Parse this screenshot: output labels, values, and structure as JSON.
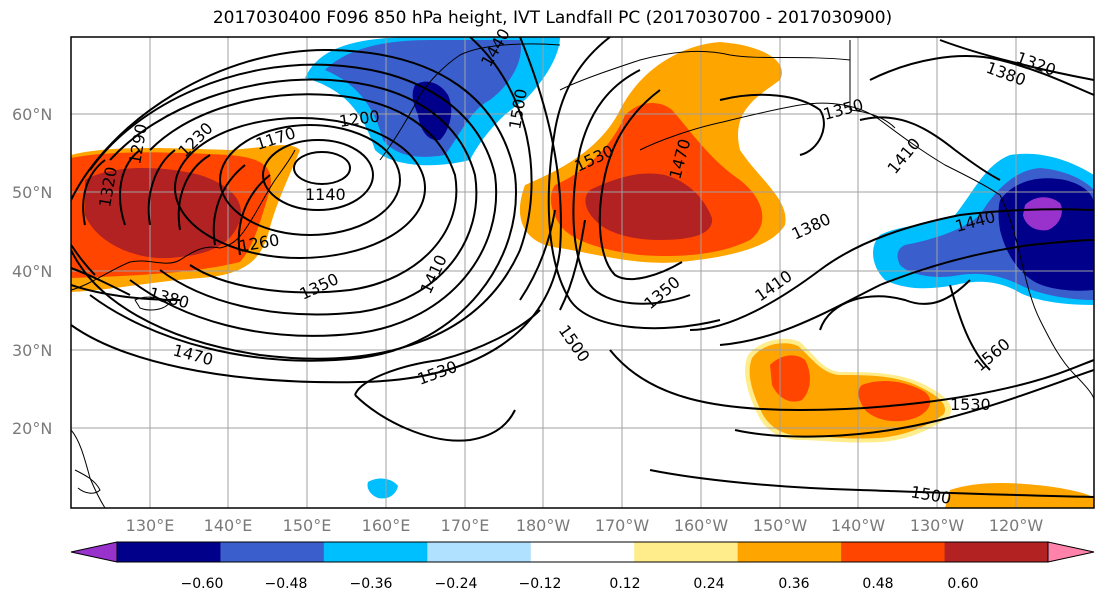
{
  "title": "2017030400 F096 850 hPa height, IVT Landfall PC (2017030700 - 2017030900)",
  "latitude_labels": [
    "60°N",
    "50°N",
    "40°N",
    "30°N",
    "20°N"
  ],
  "longitude_labels": [
    "130°E",
    "140°E",
    "150°E",
    "160°E",
    "170°E",
    "180°W",
    "170°W",
    "160°W",
    "150°W",
    "140°W",
    "130°W",
    "120°W"
  ],
  "colorbar": {
    "colors": [
      "#9932CC",
      "#00008B",
      "#3A5FCD",
      "#00BFFF",
      "#B0E2FF",
      "#FFFFFF",
      "#FFEC8B",
      "#FFA500",
      "#FF4500",
      "#B22222",
      "#FF82AB"
    ],
    "tick_labels": [
      "−0.60",
      "−0.48",
      "−0.36",
      "−0.24",
      "−0.12",
      "0.12",
      "0.24",
      "0.36",
      "0.48",
      "0.60"
    ]
  },
  "contour_labels": {
    "l1170": "1170",
    "l1200": "1200",
    "l1230": "1230",
    "l1290": "1290",
    "l1320": "1320",
    "l1140": "1140",
    "l1260": "1260",
    "l1350a": "1350",
    "l1380a": "1380",
    "l1410a": "1410",
    "l1470": "1470",
    "l1440a": "1440",
    "l1500a": "1500",
    "l1530a": "1530",
    "l1470b": "1470",
    "l1500b": "1500",
    "l1530b": "1530",
    "l1350b": "1350",
    "l1410b": "1410",
    "l1380b": "1380",
    "l1350c": "1350",
    "l1380c": "1380",
    "l1320b": "1320",
    "l1440b": "1440",
    "l1560": "1560",
    "l1530c": "1530",
    "l1500c": "1500",
    "l1410c": "1410"
  }
}
